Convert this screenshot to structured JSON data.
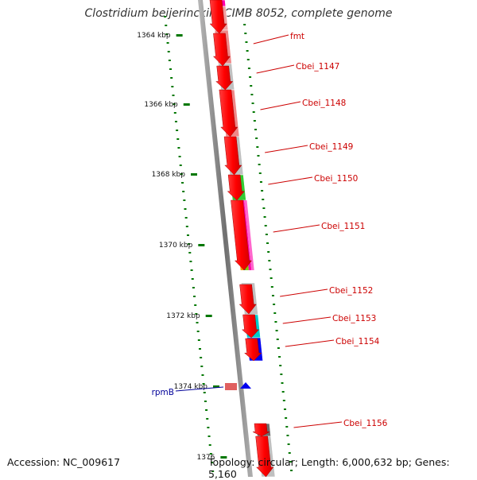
{
  "title": "Clostridium beijerinckii NCIMB 8052, complete genome",
  "accession": "Accession: NC_009617",
  "summary": "Topology: circular; Length: 6,000,632 bp; Genes: 5,160",
  "ticks": [
    "1364 kbp",
    "1366 kbp",
    "1368 kbp",
    "1370 kbp",
    "1372 kbp",
    "1374 kbp",
    "1376"
  ],
  "gene_labels": [
    "fmt",
    "Cbei_1147",
    "Cbei_1148",
    "Cbei_1149",
    "Cbei_1150",
    "Cbei_1151",
    "Cbei_1152",
    "Cbei_1153",
    "Cbei_1154",
    "Cbei_1156"
  ],
  "rna_label": "rpmB",
  "colors": {
    "gene_red": "#ff0000",
    "label_red": "#cc0000",
    "label_blue": "#000099",
    "tick_green": "#007700",
    "backbone": "#888888",
    "cds_pink": "#ef8888",
    "cds_grey": "#c0c0c0",
    "cds_green": "#33cc33",
    "cds_cyan": "#00cccc",
    "cds_blue": "#0000ee",
    "cds_magenta": "#ff00aa"
  }
}
